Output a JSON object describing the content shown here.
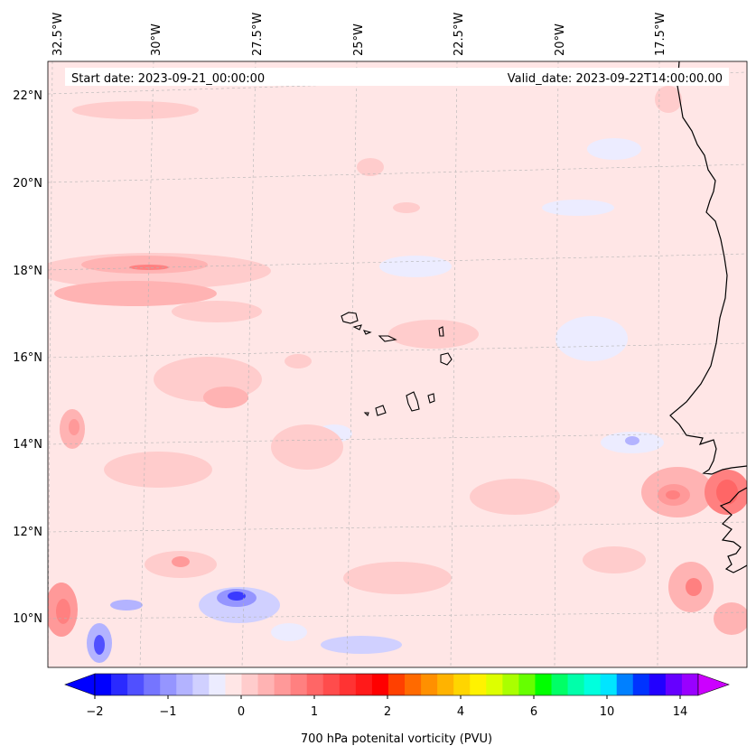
{
  "header": {
    "start_date": "Start date: 2023-09-21_00:00:00",
    "valid_date": "Valid_date: 2023-09-22T14:00:00.00"
  },
  "map": {
    "lon_labels": [
      "32.5°W",
      "30°W",
      "27.5°W",
      "25°W",
      "22.5°W",
      "20°W",
      "17.5°W"
    ],
    "lat_labels": [
      "22°N",
      "20°N",
      "18°N",
      "16°N",
      "14°N",
      "12°N",
      "10°N"
    ],
    "background_color": "#ffe6e6"
  },
  "colorbar": {
    "label": "700 hPa potenital vorticity (PVU)",
    "ticks": [
      "−2",
      "−1",
      "0",
      "1",
      "2",
      "4",
      "6",
      "10",
      "14"
    ],
    "colors": [
      "#0000ff",
      "#2a2aff",
      "#5050ff",
      "#7575ff",
      "#9595ff",
      "#b3b3ff",
      "#d0d0ff",
      "#ececff",
      "#ffe6e6",
      "#ffcccc",
      "#ffb3b3",
      "#ff9999",
      "#ff8080",
      "#ff6666",
      "#ff4c4c",
      "#ff3333",
      "#ff1a1a",
      "#ff0000",
      "#ff4000",
      "#ff6a00",
      "#ff9000",
      "#ffb300",
      "#ffd500",
      "#fff200",
      "#ddff00",
      "#aaff00",
      "#66ff00",
      "#00ff00",
      "#00ff66",
      "#00ffaa",
      "#00ffdd",
      "#00e5ff",
      "#0080ff",
      "#0033ff",
      "#2200ff",
      "#6600ff",
      "#9900ff"
    ],
    "extend_low_color": "#0000ff",
    "extend_high_color": "#cc00ff"
  }
}
